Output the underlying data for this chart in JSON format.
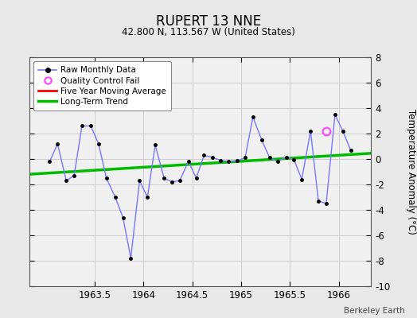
{
  "title": "RUPERT 13 NNE",
  "subtitle": "42.800 N, 113.567 W (United States)",
  "ylabel": "Temperature Anomaly (°C)",
  "watermark": "Berkeley Earth",
  "xlim": [
    1962.83,
    1966.33
  ],
  "ylim": [
    -10,
    8
  ],
  "yticks": [
    -10,
    -8,
    -6,
    -4,
    -2,
    0,
    2,
    4,
    6,
    8
  ],
  "xticks": [
    1963.5,
    1964.0,
    1964.5,
    1965.0,
    1965.5,
    1966.0
  ],
  "xticklabels": [
    "1963.5",
    "1964",
    "1964.5",
    "1965",
    "1965.5",
    "1966"
  ],
  "fig_bg": "#e8e8e8",
  "plot_bg": "#f0f0f0",
  "raw_x": [
    1963.04,
    1963.12,
    1963.21,
    1963.29,
    1963.37,
    1963.46,
    1963.54,
    1963.62,
    1963.71,
    1963.79,
    1963.87,
    1963.96,
    1964.04,
    1964.12,
    1964.21,
    1964.29,
    1964.37,
    1964.46,
    1964.54,
    1964.62,
    1964.71,
    1964.79,
    1964.87,
    1964.96,
    1965.04,
    1965.12,
    1965.21,
    1965.29,
    1965.37,
    1965.46,
    1965.54,
    1965.62,
    1965.71,
    1965.79,
    1965.87,
    1965.96,
    1966.04,
    1966.12
  ],
  "raw_y": [
    -0.2,
    1.2,
    -1.7,
    -1.3,
    2.6,
    2.6,
    1.2,
    -1.5,
    -3.0,
    -4.6,
    -7.8,
    -1.7,
    -3.0,
    1.1,
    -1.5,
    -1.8,
    -1.7,
    -0.2,
    -1.5,
    0.3,
    0.1,
    -0.1,
    -0.2,
    -0.15,
    0.1,
    3.3,
    1.5,
    0.1,
    -0.2,
    0.15,
    -0.05,
    -1.6,
    2.2,
    -3.3,
    -3.5,
    3.5,
    2.2,
    0.7
  ],
  "qc_fail_x": [
    1965.87
  ],
  "qc_fail_y": [
    2.2
  ],
  "trend_x": [
    1962.83,
    1966.33
  ],
  "trend_y": [
    -1.2,
    0.45
  ],
  "raw_line_color": "#7777ff",
  "trend_color": "#00bb00",
  "moving_avg_color": "#ff0000",
  "qc_color": "#ff44ff",
  "grid_color": "#cccccc",
  "legend_items": [
    "Raw Monthly Data",
    "Quality Control Fail",
    "Five Year Moving Average",
    "Long-Term Trend"
  ]
}
